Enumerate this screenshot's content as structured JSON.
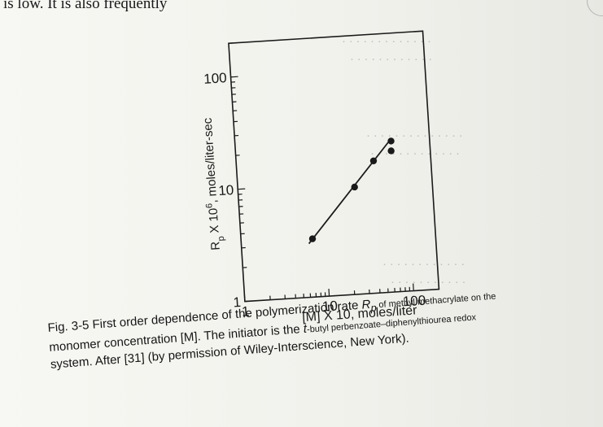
{
  "page": {
    "top_line_text": "is low. It is also frequently",
    "caption": {
      "line1_a": "Fig. 3-5  First order dependence of the polymerization rate ",
      "line1_symbol": "R",
      "line1_sub": "p",
      "line1_b": " of methyl methacrylate on the",
      "line2_a": "monomer concentration [M]. The initiator is the ",
      "line2_t": "t",
      "line2_b": "-butyl perbenzoate–diphenylthiourea redox",
      "line3": "system. After [31] (by permission of Wiley-Interscience, New York)."
    }
  },
  "chart_data": {
    "type": "scatter",
    "x_scale": "log",
    "y_scale": "log",
    "xlim": [
      1,
      200
    ],
    "ylim": [
      1,
      200
    ],
    "x_ticks": [
      1,
      10,
      100
    ],
    "y_ticks": [
      1,
      10,
      100
    ],
    "x_tick_labels": [
      "1",
      "10",
      "100"
    ],
    "y_tick_labels": [
      "1",
      "10",
      "100"
    ],
    "xlabel": "[M] X 10, moles/liter",
    "ylabel": "R_p X 10^6, moles/liter-sec",
    "grid": false,
    "series": [
      {
        "x": [
          7,
          24,
          42,
          70,
          69
        ],
        "y": [
          3.3,
          9,
          15,
          22,
          18
        ]
      }
    ],
    "fit_line": {
      "x": [
        6.3,
        70
      ],
      "y": [
        3.0,
        23
      ]
    },
    "colors": {
      "ink": "#1a1a1a",
      "paper": "#f2f2ee"
    }
  }
}
